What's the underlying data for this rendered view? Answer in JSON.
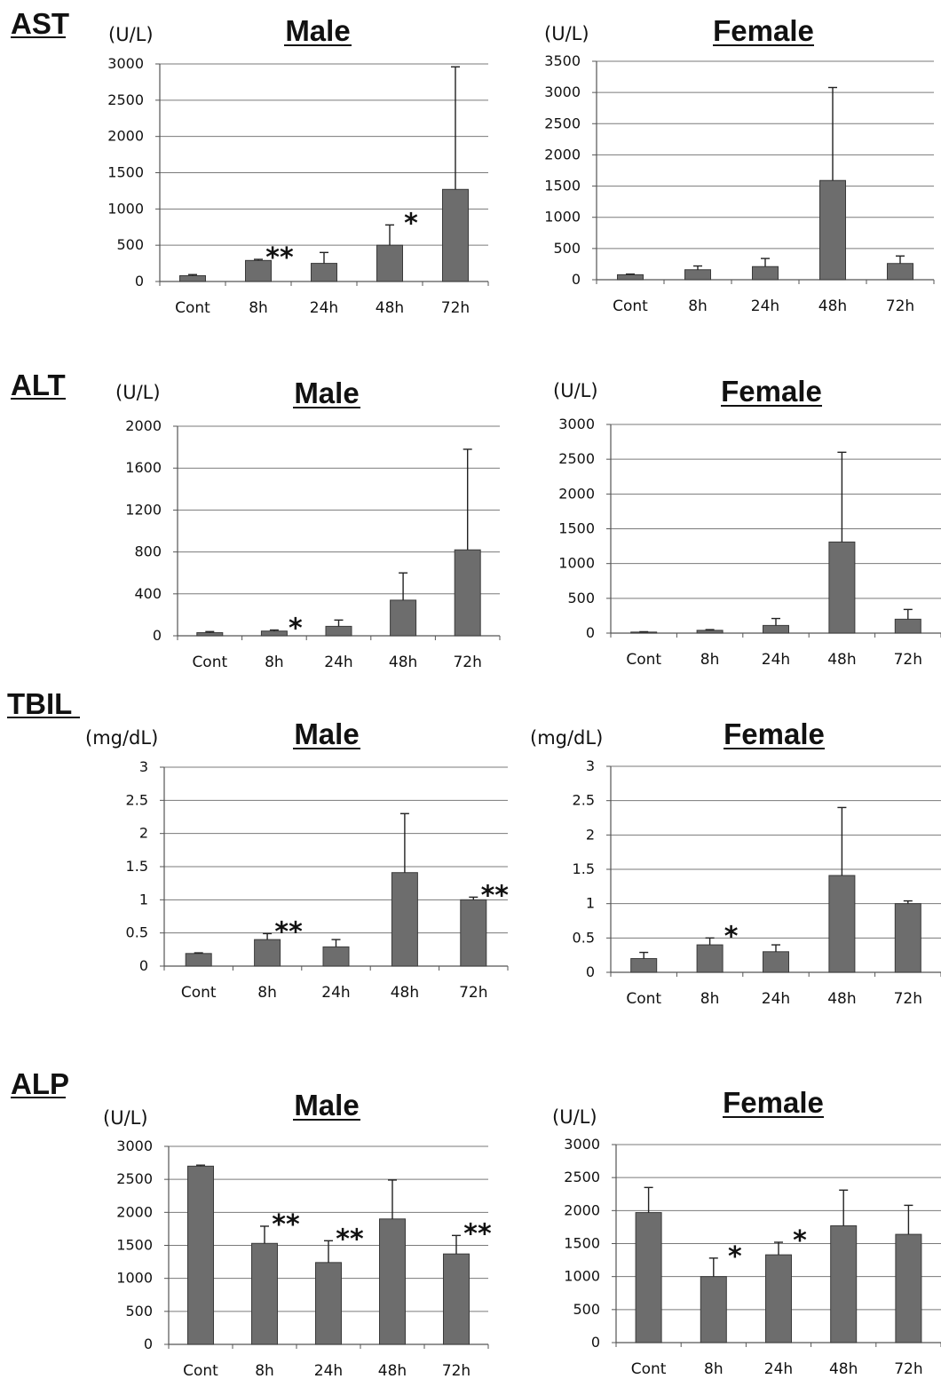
{
  "chart_data": [
    {
      "type": "bar",
      "section": "AST",
      "title": "Male",
      "unit": "(U/L)",
      "categories": [
        "Cont",
        "8h",
        "24h",
        "48h",
        "72h"
      ],
      "values": [
        80,
        290,
        250,
        500,
        1270
      ],
      "errors": [
        15,
        15,
        150,
        280,
        1690
      ],
      "significance": [
        "",
        "**",
        "",
        "*",
        ""
      ],
      "ylim": [
        0,
        3000
      ],
      "yticks": [
        0,
        500,
        1000,
        1500,
        2000,
        2500,
        3000
      ],
      "grid": true
    },
    {
      "type": "bar",
      "section": "AST",
      "title": "Female",
      "unit": "(U/L)",
      "categories": [
        "Cont",
        "8h",
        "24h",
        "48h",
        "72h"
      ],
      "values": [
        80,
        160,
        210,
        1590,
        260
      ],
      "errors": [
        10,
        60,
        130,
        1490,
        120
      ],
      "significance": [
        "",
        "",
        "",
        "",
        ""
      ],
      "ylim": [
        0,
        3500
      ],
      "yticks": [
        0,
        500,
        1000,
        1500,
        2000,
        2500,
        3000,
        3500
      ],
      "grid": true
    },
    {
      "type": "bar",
      "section": "ALT",
      "title": "Male",
      "unit": "(U/L)",
      "categories": [
        "Cont",
        "8h",
        "24h",
        "48h",
        "72h"
      ],
      "values": [
        30,
        45,
        90,
        340,
        820
      ],
      "errors": [
        10,
        10,
        60,
        260,
        960
      ],
      "significance": [
        "",
        "*",
        "",
        "",
        ""
      ],
      "ylim": [
        0,
        2000
      ],
      "yticks": [
        0,
        400,
        800,
        1200,
        1600,
        2000
      ],
      "grid": true
    },
    {
      "type": "bar",
      "section": "ALT",
      "title": "Female",
      "unit": "(U/L)",
      "categories": [
        "Cont",
        "8h",
        "24h",
        "48h",
        "72h"
      ],
      "values": [
        15,
        40,
        110,
        1310,
        200
      ],
      "errors": [
        5,
        10,
        100,
        1290,
        140
      ],
      "significance": [
        "",
        "",
        "",
        "",
        ""
      ],
      "ylim": [
        0,
        3000
      ],
      "yticks": [
        0,
        500,
        1000,
        1500,
        2000,
        2500,
        3000
      ],
      "grid": true
    },
    {
      "type": "bar",
      "section": "TBIL",
      "title": "Male",
      "unit": "(mg/dL)",
      "categories": [
        "Cont",
        "8h",
        "24h",
        "48h",
        "72h"
      ],
      "values": [
        0.19,
        0.4,
        0.29,
        1.41,
        1.0
      ],
      "errors": [
        0.01,
        0.09,
        0.11,
        0.89,
        0.04
      ],
      "significance": [
        "",
        "**",
        "",
        "",
        "**"
      ],
      "ylim": [
        0,
        3
      ],
      "yticks": [
        0,
        0.5,
        1,
        1.5,
        2,
        2.5,
        3
      ],
      "grid": true
    },
    {
      "type": "bar",
      "section": "TBIL",
      "title": "Female",
      "unit": "(mg/dL)",
      "categories": [
        "Cont",
        "8h",
        "24h",
        "48h",
        "72h"
      ],
      "values": [
        0.2,
        0.4,
        0.3,
        1.41,
        1.0
      ],
      "errors": [
        0.09,
        0.1,
        0.1,
        0.99,
        0.04
      ],
      "significance": [
        "",
        "*",
        "",
        "",
        ""
      ],
      "ylim": [
        0,
        3
      ],
      "yticks": [
        0,
        0.5,
        1,
        1.5,
        2,
        2.5,
        3
      ],
      "grid": true
    },
    {
      "type": "bar",
      "section": "ALP",
      "title": "Male",
      "unit": "(U/L)",
      "categories": [
        "Cont",
        "8h",
        "24h",
        "48h",
        "72h"
      ],
      "values": [
        2700,
        1530,
        1240,
        1900,
        1370
      ],
      "errors": [
        15,
        260,
        330,
        590,
        280
      ],
      "significance": [
        "",
        "**",
        "**",
        "",
        "**"
      ],
      "ylim": [
        0,
        3000
      ],
      "yticks": [
        0,
        500,
        1000,
        1500,
        2000,
        2500,
        3000
      ],
      "grid": true
    },
    {
      "type": "bar",
      "section": "ALP",
      "title": "Female",
      "unit": "(U/L)",
      "categories": [
        "Cont",
        "8h",
        "24h",
        "48h",
        "72h"
      ],
      "values": [
        1970,
        1000,
        1330,
        1770,
        1640
      ],
      "errors": [
        380,
        280,
        190,
        540,
        440
      ],
      "significance": [
        "",
        "*",
        "*",
        "",
        ""
      ],
      "ylim": [
        0,
        3000
      ],
      "yticks": [
        0,
        500,
        1000,
        1500,
        2000,
        2500,
        3000
      ],
      "grid": true
    }
  ]
}
